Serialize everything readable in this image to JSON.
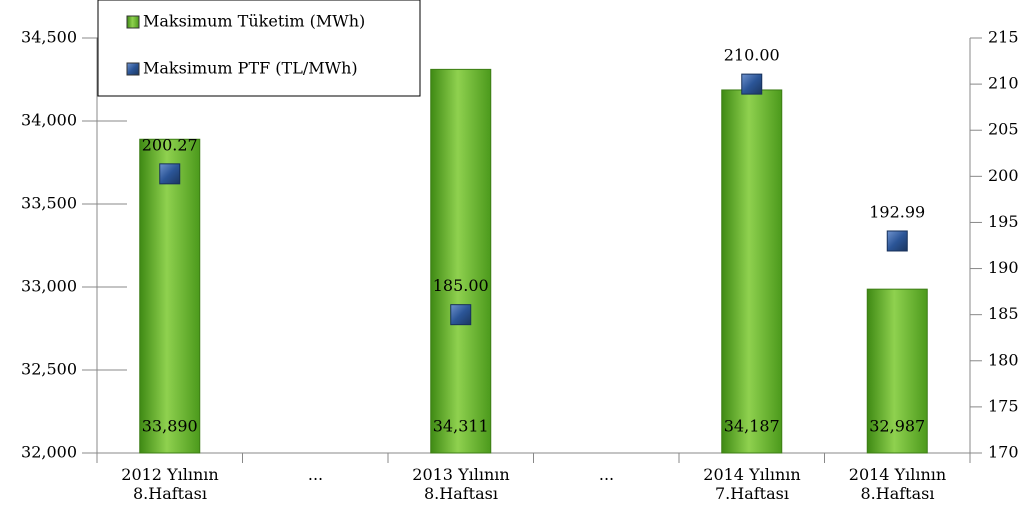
{
  "chart_data": {
    "type": "bar",
    "categories": [
      "2012 Yılının\n8.Haftası",
      "...",
      "2013 Yılının\n8.Haftası",
      "...",
      "2014 Yılının\n7.Haftası",
      "2014 Yılının\n8.Haftası"
    ],
    "series": [
      {
        "name": "Maksimum Tüketim (MWh)",
        "type": "bar",
        "color": "#66b32e",
        "values": [
          33890,
          null,
          34311,
          null,
          34187,
          32987
        ],
        "value_labels": [
          "33,890",
          null,
          "34,311",
          null,
          "34,187",
          "32,987"
        ]
      },
      {
        "name": "Maksimum PTF (TL/MWh)",
        "type": "scatter",
        "axis": "y2",
        "color": "#2b5597",
        "values": [
          200.27,
          null,
          185,
          null,
          210,
          192.99
        ],
        "value_labels": [
          "200.27",
          null,
          "185.00",
          null,
          "210.00",
          "192.99"
        ]
      }
    ],
    "ylim": [
      32000,
      34500
    ],
    "yticks": [
      {
        "value": 32000,
        "label": "32,000"
      },
      {
        "value": 32500,
        "label": "32,500"
      },
      {
        "value": 33000,
        "label": "33,000"
      },
      {
        "value": 33500,
        "label": "33,500"
      },
      {
        "value": 34000,
        "label": "34,000"
      },
      {
        "value": 34500,
        "label": "34,500"
      }
    ],
    "y2lim": [
      170,
      215
    ],
    "y2ticks": [
      170,
      175,
      180,
      185,
      190,
      195,
      200,
      205,
      210,
      215
    ],
    "grid": false,
    "legend": "top-left"
  }
}
